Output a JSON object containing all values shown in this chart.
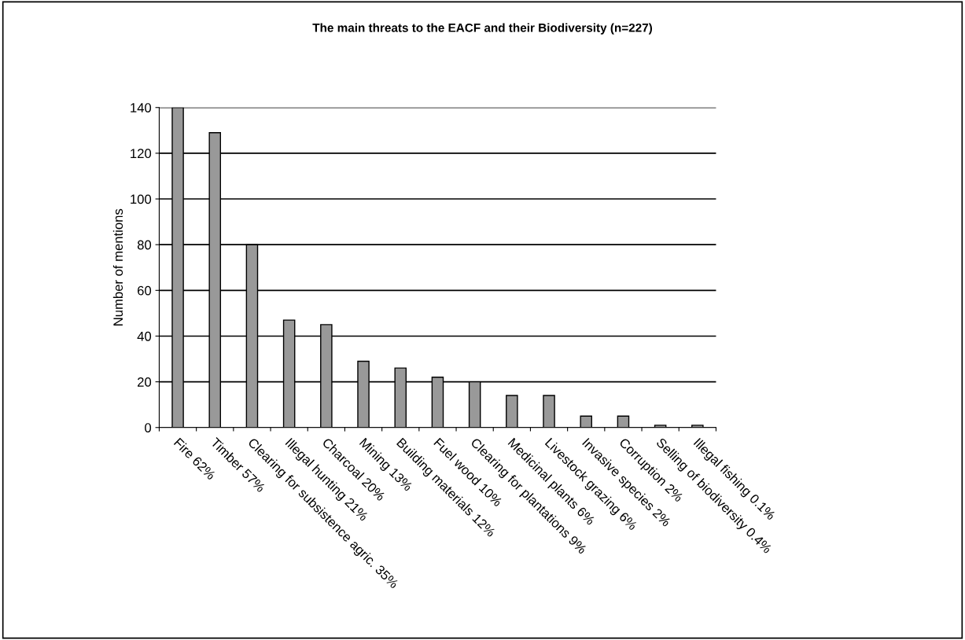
{
  "chart_data": {
    "type": "bar",
    "title": "The main threats to the EACF and their Biodiversity (n=227)",
    "ylabel": "Number of mentions",
    "categories": [
      "Fire 62%",
      "Timber 57%",
      "Clearing for subsistence agric. 35%",
      "Illegal hunting 21%",
      "Charcoal 20%",
      "Mining 13%",
      "Building materials 12%",
      "Fuel wood 10%",
      "Clearing for plantations 9%",
      "Medicinal plants 6%",
      "Livestock grazing 6%",
      "Invasive species 2%",
      "Corruption 2%",
      "Selling of biodiversity 0.4%",
      "Illegal fishing 0.1%"
    ],
    "values": [
      140,
      129,
      80,
      47,
      45,
      29,
      26,
      22,
      20,
      14,
      14,
      5,
      5,
      1,
      1
    ],
    "color": "#999999",
    "ylim": [
      0,
      140
    ],
    "yticks": [
      0,
      20,
      40,
      60,
      80,
      100,
      120,
      140
    ],
    "grid": "y",
    "legend": false
  }
}
